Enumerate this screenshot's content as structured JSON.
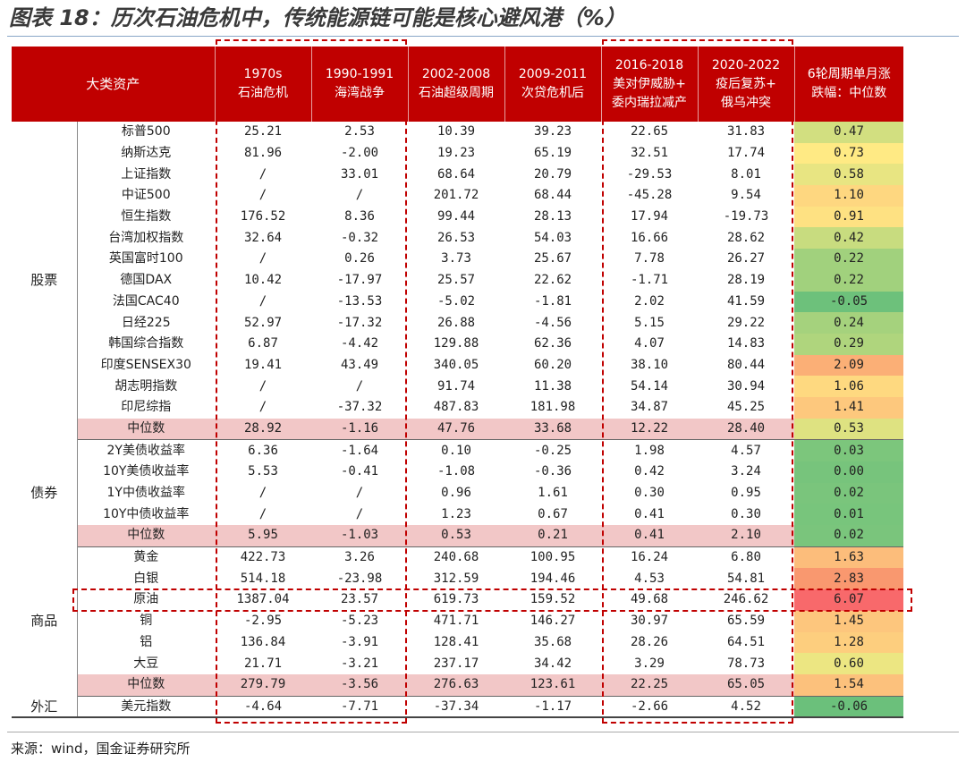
{
  "title": "图表 18：历次石油危机中，传统能源链可能是核心避风港（%）",
  "source": "来源：wind，国金证券研究所",
  "colors": {
    "header_bg": "#c00000",
    "median_row_bg": "#f2c7c7",
    "highlight_frame": "#c00000"
  },
  "table": {
    "headers": [
      {
        "lines": [
          "大类资产"
        ]
      },
      {
        "lines": [
          "1970s",
          "石油危机"
        ]
      },
      {
        "lines": [
          "1990-1991",
          "海湾战争"
        ]
      },
      {
        "lines": [
          "2002-2008",
          "石油超级周期"
        ]
      },
      {
        "lines": [
          "2009-2011",
          "次贷危机后"
        ]
      },
      {
        "lines": [
          "2016-2018",
          "美对伊威胁+",
          "委内瑞拉减产"
        ]
      },
      {
        "lines": [
          "2020-2022",
          "疫后复苏+",
          "俄乌冲突"
        ]
      },
      {
        "lines": [
          "6轮周期单月涨",
          "跌幅：中位数"
        ]
      }
    ],
    "sections": [
      {
        "name": "股票",
        "rows": [
          {
            "asset": "标普500",
            "values": [
              "25.21",
              "2.53",
              "10.39",
              "39.23",
              "22.65",
              "31.83"
            ],
            "median": "0.47"
          },
          {
            "asset": "纳斯达克",
            "values": [
              "81.96",
              "-2.00",
              "19.23",
              "65.19",
              "32.51",
              "17.74"
            ],
            "median": "0.73"
          },
          {
            "asset": "上证指数",
            "values": [
              "/",
              "33.01",
              "68.64",
              "20.79",
              "-29.53",
              "8.01"
            ],
            "median": "0.58"
          },
          {
            "asset": "中证500",
            "values": [
              "/",
              "/",
              "201.72",
              "68.44",
              "-45.28",
              "9.54"
            ],
            "median": "1.10"
          },
          {
            "asset": "恒生指数",
            "values": [
              "176.52",
              "8.36",
              "99.44",
              "28.13",
              "17.94",
              "-19.73"
            ],
            "median": "0.91"
          },
          {
            "asset": "台湾加权指数",
            "values": [
              "32.64",
              "-0.32",
              "26.53",
              "54.03",
              "16.66",
              "28.62"
            ],
            "median": "0.42"
          },
          {
            "asset": "英国富时100",
            "values": [
              "/",
              "0.26",
              "3.73",
              "25.67",
              "7.78",
              "26.27"
            ],
            "median": "0.22"
          },
          {
            "asset": "德国DAX",
            "values": [
              "10.42",
              "-17.97",
              "25.57",
              "22.62",
              "-1.71",
              "28.19"
            ],
            "median": "0.22"
          },
          {
            "asset": "法国CAC40",
            "values": [
              "/",
              "-13.53",
              "-5.02",
              "-1.81",
              "2.02",
              "41.59"
            ],
            "median": "-0.05"
          },
          {
            "asset": "日经225",
            "values": [
              "52.97",
              "-17.32",
              "26.88",
              "-4.56",
              "5.15",
              "29.22"
            ],
            "median": "0.24"
          },
          {
            "asset": "韩国综合指数",
            "values": [
              "6.87",
              "-4.42",
              "129.88",
              "62.36",
              "4.07",
              "14.83"
            ],
            "median": "0.29"
          },
          {
            "asset": "印度SENSEX30",
            "values": [
              "19.41",
              "43.49",
              "340.05",
              "60.20",
              "38.10",
              "80.44"
            ],
            "median": "2.09"
          },
          {
            "asset": "胡志明指数",
            "values": [
              "/",
              "/",
              "91.74",
              "11.38",
              "54.14",
              "30.94"
            ],
            "median": "1.06"
          },
          {
            "asset": "印尼综指",
            "values": [
              "/",
              "-37.32",
              "487.83",
              "181.98",
              "34.87",
              "45.25"
            ],
            "median": "1.41"
          },
          {
            "asset": "中位数",
            "values": [
              "28.92",
              "-1.16",
              "47.76",
              "33.68",
              "12.22",
              "28.40"
            ],
            "median": "0.53",
            "is_median": true
          }
        ]
      },
      {
        "name": "债券",
        "rows": [
          {
            "asset": "2Y美债收益率",
            "values": [
              "6.36",
              "-1.64",
              "0.10",
              "-0.25",
              "1.98",
              "4.57"
            ],
            "median": "0.03"
          },
          {
            "asset": "10Y美债收益率",
            "values": [
              "5.53",
              "-0.41",
              "-1.08",
              "-0.36",
              "0.42",
              "3.24"
            ],
            "median": "0.00"
          },
          {
            "asset": "1Y中债收益率",
            "values": [
              "/",
              "/",
              "0.96",
              "1.61",
              "0.30",
              "0.95"
            ],
            "median": "0.02"
          },
          {
            "asset": "10Y中债收益率",
            "values": [
              "/",
              "/",
              "1.23",
              "0.67",
              "0.41",
              "0.30"
            ],
            "median": "0.01"
          },
          {
            "asset": "中位数",
            "values": [
              "5.95",
              "-1.03",
              "0.53",
              "0.21",
              "0.41",
              "2.10"
            ],
            "median": "0.02",
            "is_median": true
          }
        ]
      },
      {
        "name": "商品",
        "rows": [
          {
            "asset": "黄金",
            "values": [
              "422.73",
              "3.26",
              "240.68",
              "100.95",
              "16.24",
              "6.80"
            ],
            "median": "1.63"
          },
          {
            "asset": "白银",
            "values": [
              "514.18",
              "-23.98",
              "312.59",
              "194.46",
              "4.53",
              "54.81"
            ],
            "median": "2.83"
          },
          {
            "asset": "原油",
            "values": [
              "1387.04",
              "23.57",
              "619.73",
              "159.52",
              "49.68",
              "246.62"
            ],
            "median": "6.07",
            "highlight": true
          },
          {
            "asset": "铜",
            "values": [
              "-2.95",
              "-5.23",
              "471.71",
              "146.27",
              "30.97",
              "65.59"
            ],
            "median": "1.45"
          },
          {
            "asset": "铝",
            "values": [
              "136.84",
              "-3.91",
              "128.41",
              "35.68",
              "28.26",
              "64.51"
            ],
            "median": "1.28"
          },
          {
            "asset": "大豆",
            "values": [
              "21.71",
              "-3.21",
              "237.17",
              "34.42",
              "3.29",
              "78.73"
            ],
            "median": "0.60"
          },
          {
            "asset": "中位数",
            "values": [
              "279.79",
              "-3.56",
              "276.63",
              "123.61",
              "22.25",
              "65.05"
            ],
            "median": "1.54",
            "is_median": true
          }
        ]
      },
      {
        "name": "外汇",
        "rows": [
          {
            "asset": "美元指数",
            "values": [
              "-4.64",
              "-7.71",
              "-37.34",
              "-1.17",
              "-2.66",
              "4.52"
            ],
            "median": "-0.06"
          }
        ]
      }
    ]
  }
}
